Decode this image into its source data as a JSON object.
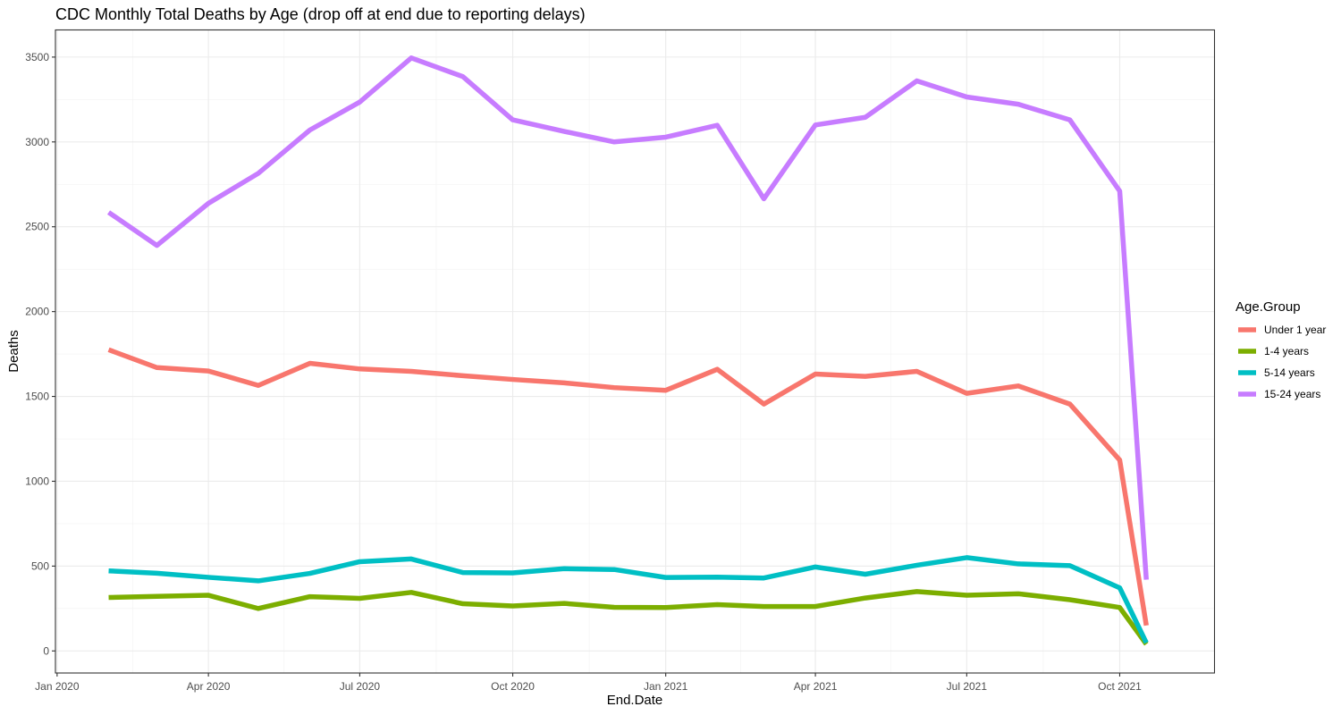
{
  "chart_data": {
    "type": "line",
    "title": "CDC Monthly Total Deaths by Age (drop off at end due to reporting delays)",
    "xlabel": "End.Date",
    "ylabel": "Deaths",
    "ylim": [
      -130,
      3660
    ],
    "xlim": [
      "2019-12-31",
      "2021-11-27"
    ],
    "y_ticks": [
      0,
      500,
      1000,
      1500,
      2000,
      2500,
      3000,
      3500
    ],
    "x_ticks": [
      {
        "date": "2020-01-01",
        "label": "Jan 2020"
      },
      {
        "date": "2020-04-01",
        "label": "Apr 2020"
      },
      {
        "date": "2020-07-01",
        "label": "Jul 2020"
      },
      {
        "date": "2020-10-01",
        "label": "Oct 2020"
      },
      {
        "date": "2021-01-01",
        "label": "Jan 2021"
      },
      {
        "date": "2021-04-01",
        "label": "Apr 2021"
      },
      {
        "date": "2021-07-01",
        "label": "Jul 2021"
      },
      {
        "date": "2021-10-01",
        "label": "Oct 2021"
      }
    ],
    "x": [
      "2020-02-01",
      "2020-03-01",
      "2020-04-01",
      "2020-05-01",
      "2020-06-01",
      "2020-07-01",
      "2020-08-01",
      "2020-09-01",
      "2020-10-01",
      "2020-11-01",
      "2020-12-01",
      "2021-01-01",
      "2021-02-01",
      "2021-03-01",
      "2021-04-01",
      "2021-05-01",
      "2021-06-01",
      "2021-07-01",
      "2021-08-01",
      "2021-09-01",
      "2021-10-01",
      "2021-10-17"
    ],
    "legend_title": "Age.Group",
    "legend_position": "right",
    "grid": true,
    "series": [
      {
        "name": "Under 1 year",
        "color": "#F8766D",
        "values": [
          1775,
          1670,
          1650,
          1565,
          1695,
          1662,
          1648,
          1622,
          1600,
          1580,
          1552,
          1536,
          1660,
          1455,
          1632,
          1618,
          1648,
          1518,
          1562,
          1455,
          1125,
          150
        ]
      },
      {
        "name": "1-4 years",
        "color": "#7CAE00",
        "values": [
          315,
          322,
          328,
          250,
          320,
          310,
          345,
          278,
          265,
          280,
          257,
          256,
          273,
          262,
          262,
          312,
          350,
          328,
          337,
          302,
          256,
          40
        ]
      },
      {
        "name": "5-14 years",
        "color": "#00BFC4",
        "values": [
          472,
          458,
          434,
          413,
          457,
          526,
          542,
          462,
          460,
          485,
          480,
          433,
          435,
          430,
          495,
          452,
          505,
          550,
          513,
          503,
          372,
          48
        ]
      },
      {
        "name": "15-24 years",
        "color": "#C77CFF",
        "values": [
          2585,
          2390,
          2638,
          2815,
          3070,
          3235,
          3495,
          3385,
          3130,
          3062,
          3000,
          3028,
          3098,
          2665,
          3100,
          3145,
          3360,
          3265,
          3222,
          3130,
          2710,
          420
        ]
      }
    ]
  }
}
